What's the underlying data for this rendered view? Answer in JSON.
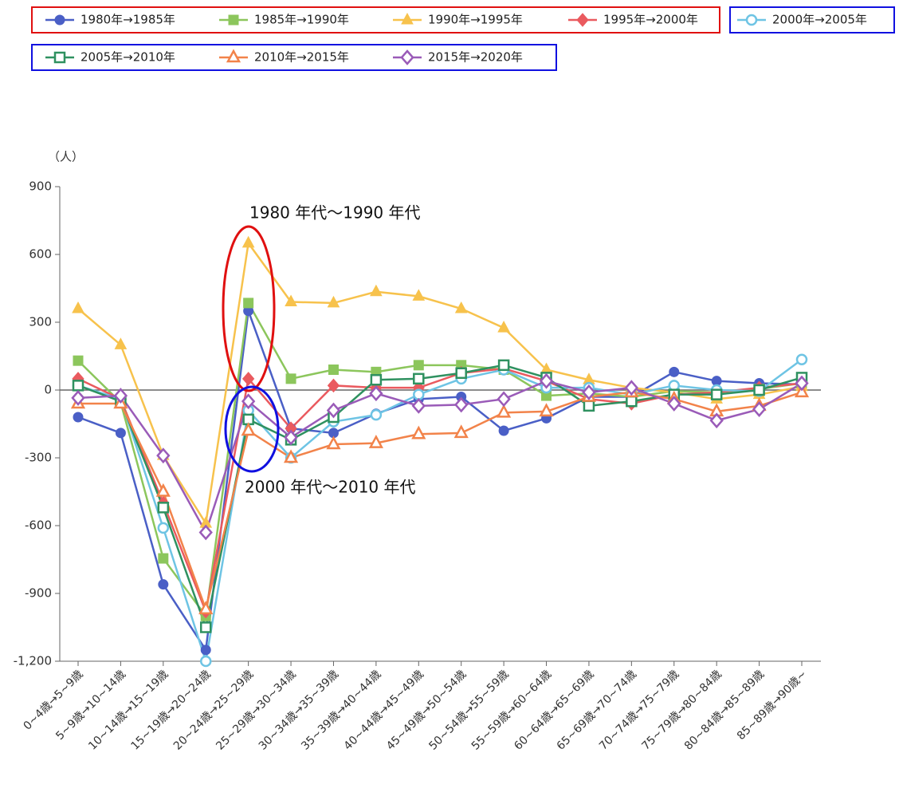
{
  "chart_data": {
    "type": "line",
    "y_unit_label": "（人）",
    "annotations": [
      "1980 年代〜1990 年代",
      "2000 年代〜2010 年代"
    ],
    "categories": [
      "0~4歳→5~9歳",
      "5~9歳→10~14歳",
      "10~14歳→15~19歳",
      "15~19歳→20~24歳",
      "20~24歳→25~29歳",
      "25~29歳→30~34歳",
      "30~34歳→35~39歳",
      "35~39歳→40~44歳",
      "40~44歳→45~49歳",
      "45~49歳→50~54歳",
      "50~54歳→55~59歳",
      "55~59歳→60~64歳",
      "60~64歳→65~69歳",
      "65~69歳→70~74歳",
      "70~74歳→75~79歳",
      "75~79歳→80~84歳",
      "80~84歳→85~89歳",
      "85~89歳→90歳~"
    ],
    "ylim": [
      -1200,
      900
    ],
    "yticks": [
      900,
      600,
      300,
      0,
      -300,
      -600,
      -900,
      {
        "value": -1200,
        "label": "-1,200"
      }
    ],
    "series": [
      {
        "name": "1980年→1985年",
        "color": "#4a5fc6",
        "marker": "circle",
        "filled": true,
        "values": [
          -120,
          -190,
          -860,
          -1150,
          350,
          -170,
          -190,
          -105,
          -40,
          -30,
          -180,
          -125,
          -30,
          -30,
          80,
          40,
          30,
          25
        ]
      },
      {
        "name": "1985年→1990年",
        "color": "#8cc65c",
        "marker": "square",
        "filled": true,
        "values": [
          130,
          -55,
          -745,
          -1000,
          385,
          50,
          90,
          80,
          110,
          110,
          90,
          -25,
          -15,
          -30,
          -5,
          -10,
          5,
          30
        ]
      },
      {
        "name": "1990年→1995年",
        "color": "#f7c24c",
        "marker": "triangle",
        "filled": true,
        "values": [
          360,
          200,
          -290,
          -590,
          650,
          390,
          385,
          435,
          415,
          360,
          275,
          90,
          45,
          10,
          -10,
          -40,
          -20,
          15
        ]
      },
      {
        "name": "1995年→2000年",
        "color": "#ea5a5f",
        "marker": "diamond",
        "filled": true,
        "values": [
          50,
          -40,
          -500,
          -980,
          50,
          -170,
          20,
          10,
          10,
          75,
          95,
          40,
          -40,
          -60,
          -20,
          -10,
          10,
          30
        ]
      },
      {
        "name": "2000年→2005年",
        "color": "#6ec4e4",
        "marker": "circle",
        "filled": false,
        "values": [
          20,
          -40,
          -610,
          -1200,
          -90,
          -300,
          -140,
          -110,
          -20,
          50,
          90,
          10,
          10,
          -20,
          20,
          0,
          -5,
          135
        ]
      },
      {
        "name": "2005年→2010年",
        "color": "#2f9160",
        "marker": "square",
        "filled": false,
        "values": [
          20,
          -50,
          -520,
          -1050,
          -130,
          -220,
          -120,
          45,
          50,
          75,
          110,
          55,
          -70,
          -50,
          -20,
          -20,
          0,
          55
        ]
      },
      {
        "name": "2010年→2015年",
        "color": "#f2834a",
        "marker": "triangle",
        "filled": false,
        "values": [
          -60,
          -60,
          -450,
          -970,
          -180,
          -300,
          -240,
          -235,
          -195,
          -190,
          -100,
          -95,
          -30,
          -10,
          -40,
          -95,
          -70,
          -10
        ]
      },
      {
        "name": "2015年→2020年",
        "color": "#9a5bb8",
        "marker": "diamond",
        "filled": false,
        "values": [
          -35,
          -25,
          -290,
          -630,
          -50,
          -210,
          -90,
          -15,
          -70,
          -65,
          -40,
          40,
          -10,
          10,
          -60,
          -135,
          -85,
          30
        ]
      }
    ]
  }
}
